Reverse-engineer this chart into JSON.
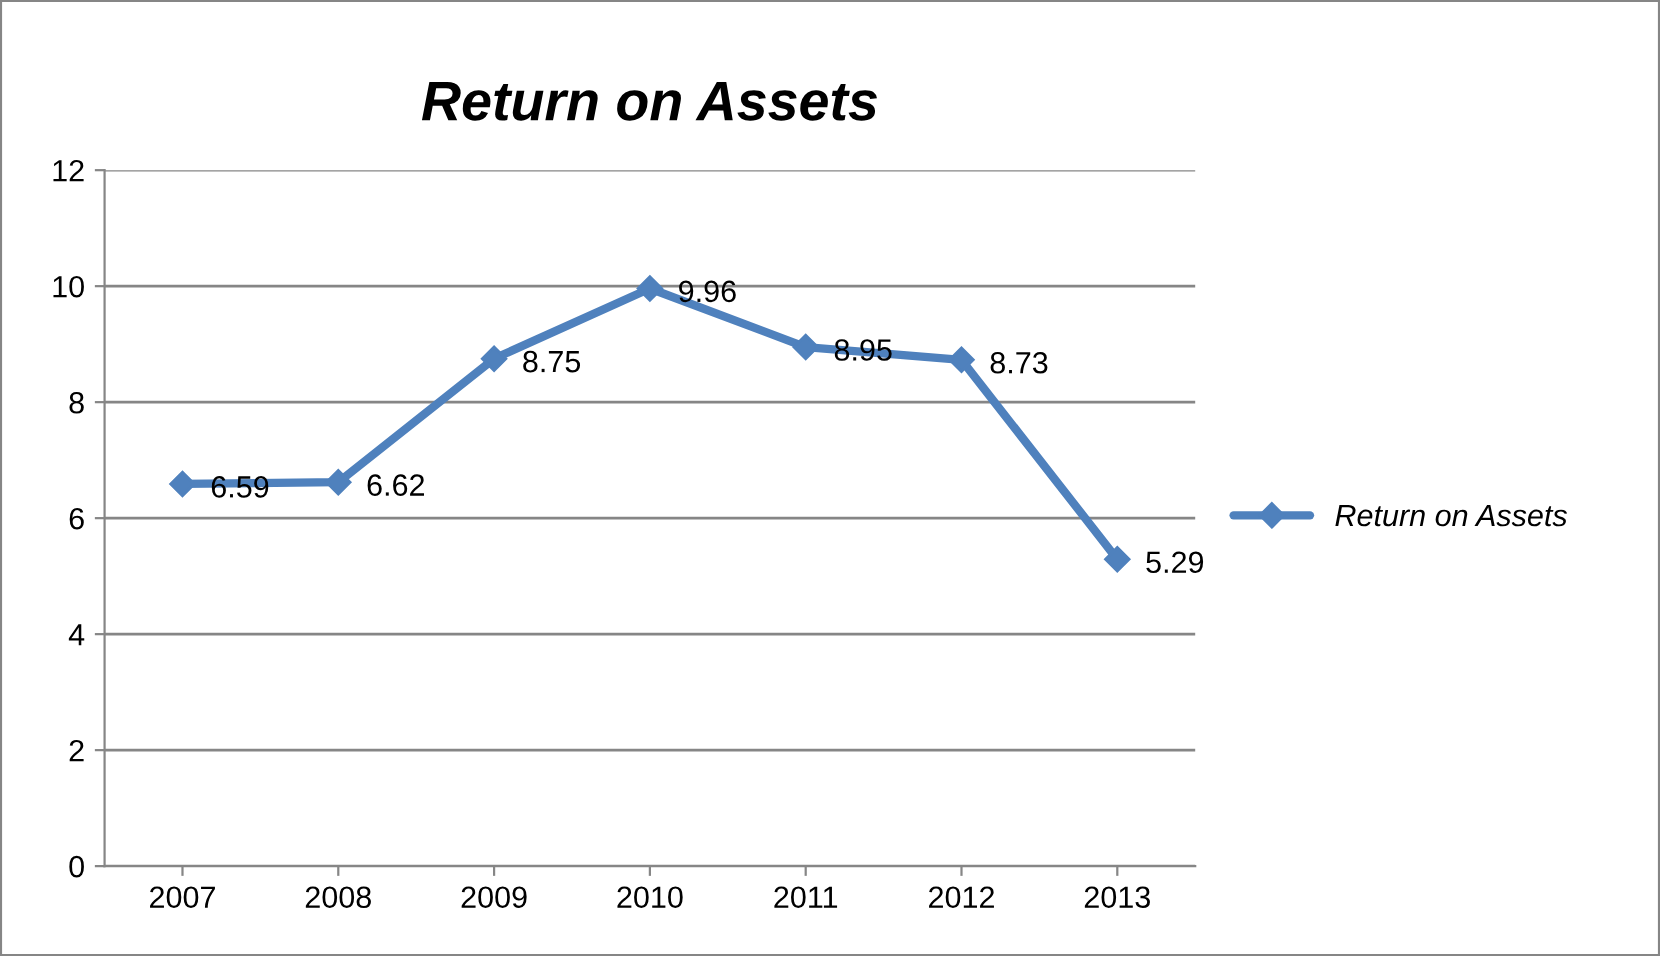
{
  "chart_data": {
    "type": "line",
    "title": "Return on Assets",
    "categories": [
      "2007",
      "2008",
      "2009",
      "2010",
      "2011",
      "2012",
      "2013"
    ],
    "series": [
      {
        "name": "Return on Assets",
        "color": "#4f81bd",
        "values": [
          6.59,
          6.62,
          8.75,
          9.96,
          8.95,
          8.73,
          5.29
        ]
      }
    ],
    "ylim": [
      0,
      12
    ],
    "yticks": [
      0,
      2,
      4,
      6,
      8,
      10,
      12
    ],
    "grid": "y",
    "legend": "right",
    "marker": "diamond",
    "line_style": "solid",
    "data_labels": true
  }
}
